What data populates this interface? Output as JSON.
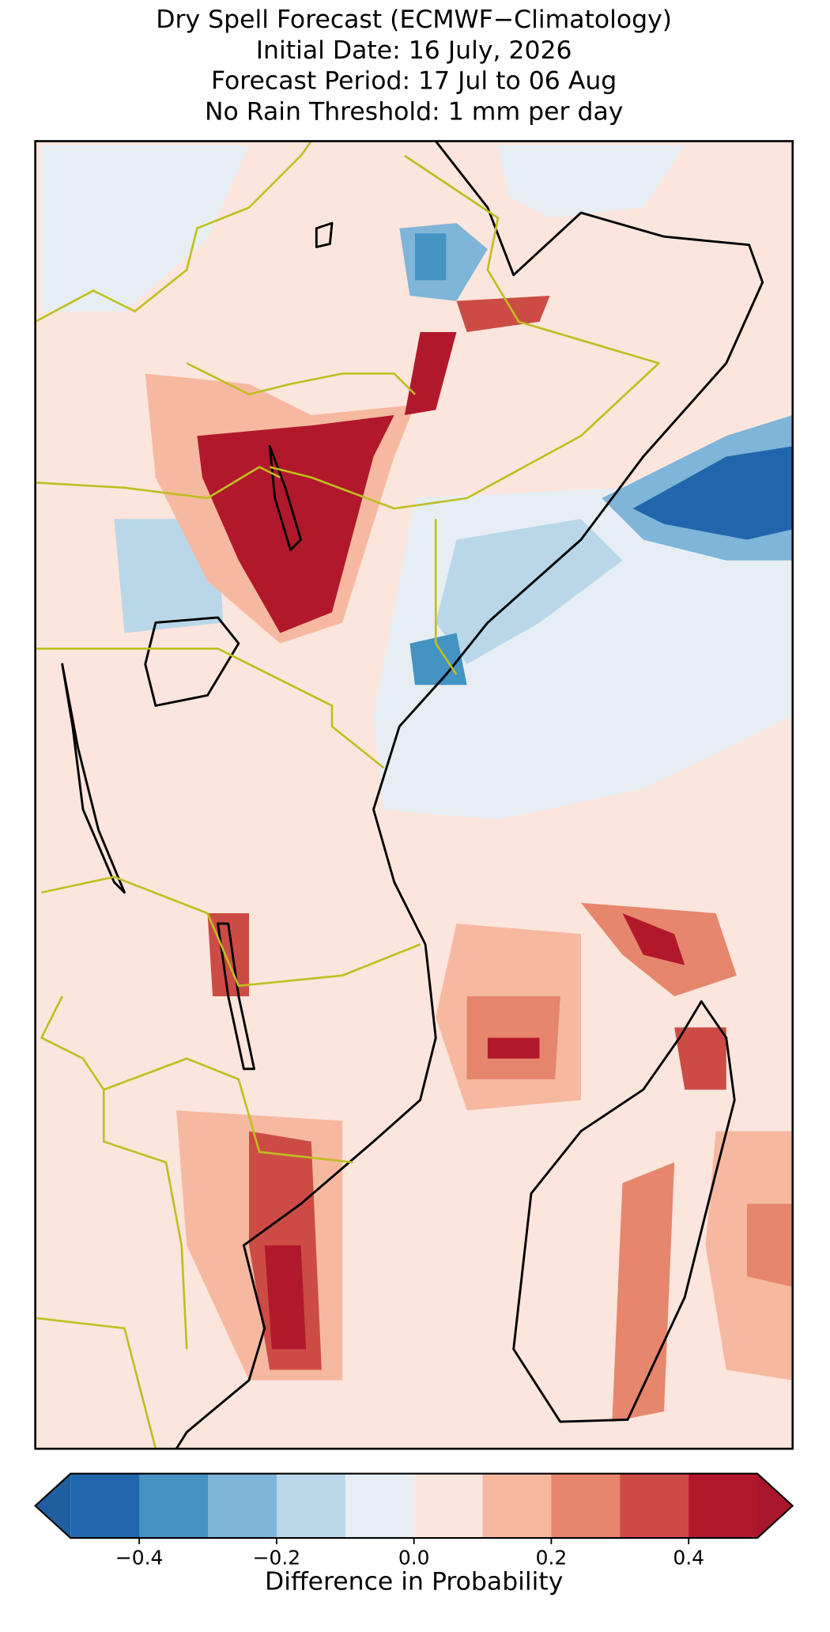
{
  "chart_data": {
    "type": "map",
    "title": [
      "Dry Spell Forecast (ECMWF−Climatology)",
      "Initial Date: 16 July, 2026",
      "Forecast Period: 17 Jul to 06 Aug",
      "No Rain Threshold: 1 mm per day"
    ],
    "colorbar": {
      "boundaries": [
        -0.5,
        -0.4,
        -0.3,
        -0.2,
        -0.1,
        0,
        0.1,
        0.2,
        0.3,
        0.4,
        0.5
      ],
      "colors": [
        "#2166ac",
        "#4393c3",
        "#7eb5d8",
        "#b9d7e9",
        "#e6eef4",
        "#fbe5dc",
        "#f6b9a0",
        "#e6866c",
        "#cc4c45",
        "#b2182b"
      ],
      "extend": "both",
      "under_color": "#1f5f9f",
      "over_color": "#a8162b",
      "ticks": [
        {
          "value": -0.4,
          "label": "−0.4"
        },
        {
          "value": -0.2,
          "label": "−0.2"
        },
        {
          "value": 0,
          "label": "0.0"
        },
        0.2,
        0.4
      ],
      "label": "Difference in Probability"
    }
  }
}
